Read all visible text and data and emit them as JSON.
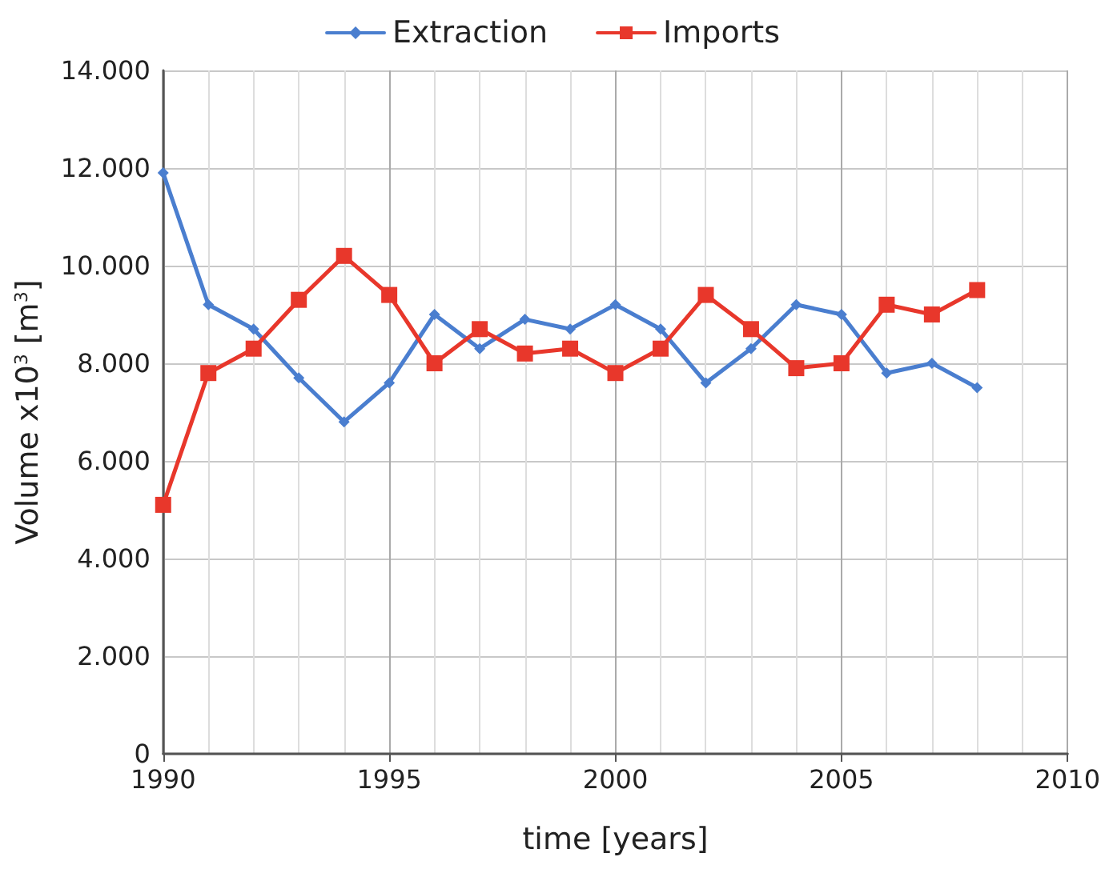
{
  "chart_data": {
    "type": "line",
    "xlabel": "time [years]",
    "ylabel": "Volume x10$^{3}$ [m$^{3}$]",
    "x": [
      1990,
      1991,
      1992,
      1993,
      1994,
      1995,
      1996,
      1997,
      1998,
      1999,
      2000,
      2001,
      2002,
      2003,
      2004,
      2005,
      2006,
      2007,
      2008
    ],
    "series": [
      {
        "name": "Extraction",
        "color": "#4a7ecf",
        "marker": "diamond",
        "values": [
          11900,
          9200,
          8700,
          7700,
          6800,
          7600,
          9000,
          8300,
          8900,
          8700,
          9200,
          8700,
          7600,
          8300,
          9200,
          9000,
          7800,
          8000,
          7500
        ]
      },
      {
        "name": "Imports",
        "color": "#e8372b",
        "marker": "square",
        "values": [
          5100,
          7800,
          8300,
          9300,
          10200,
          9400,
          8000,
          8700,
          8200,
          8300,
          7800,
          8300,
          9400,
          8700,
          7900,
          8000,
          9200,
          9000,
          9500
        ]
      }
    ],
    "xlim": [
      1990,
      2010
    ],
    "xticks": [
      1990,
      1995,
      2000,
      2005,
      2010
    ],
    "ylim": [
      0,
      14000
    ],
    "yticks": [
      0,
      {
        "value": 2000,
        "label": "2.000"
      },
      {
        "value": 4000,
        "label": "4.000"
      },
      {
        "value": 6000,
        "label": "6.000"
      },
      {
        "value": 8000,
        "label": "8.000"
      },
      {
        "value": 10000,
        "label": "10.000"
      },
      {
        "value": 12000,
        "label": "12.000"
      },
      {
        "value": 14000,
        "label": "14.000"
      }
    ],
    "grid": true,
    "legend": "top",
    "line_style": "solid"
  }
}
